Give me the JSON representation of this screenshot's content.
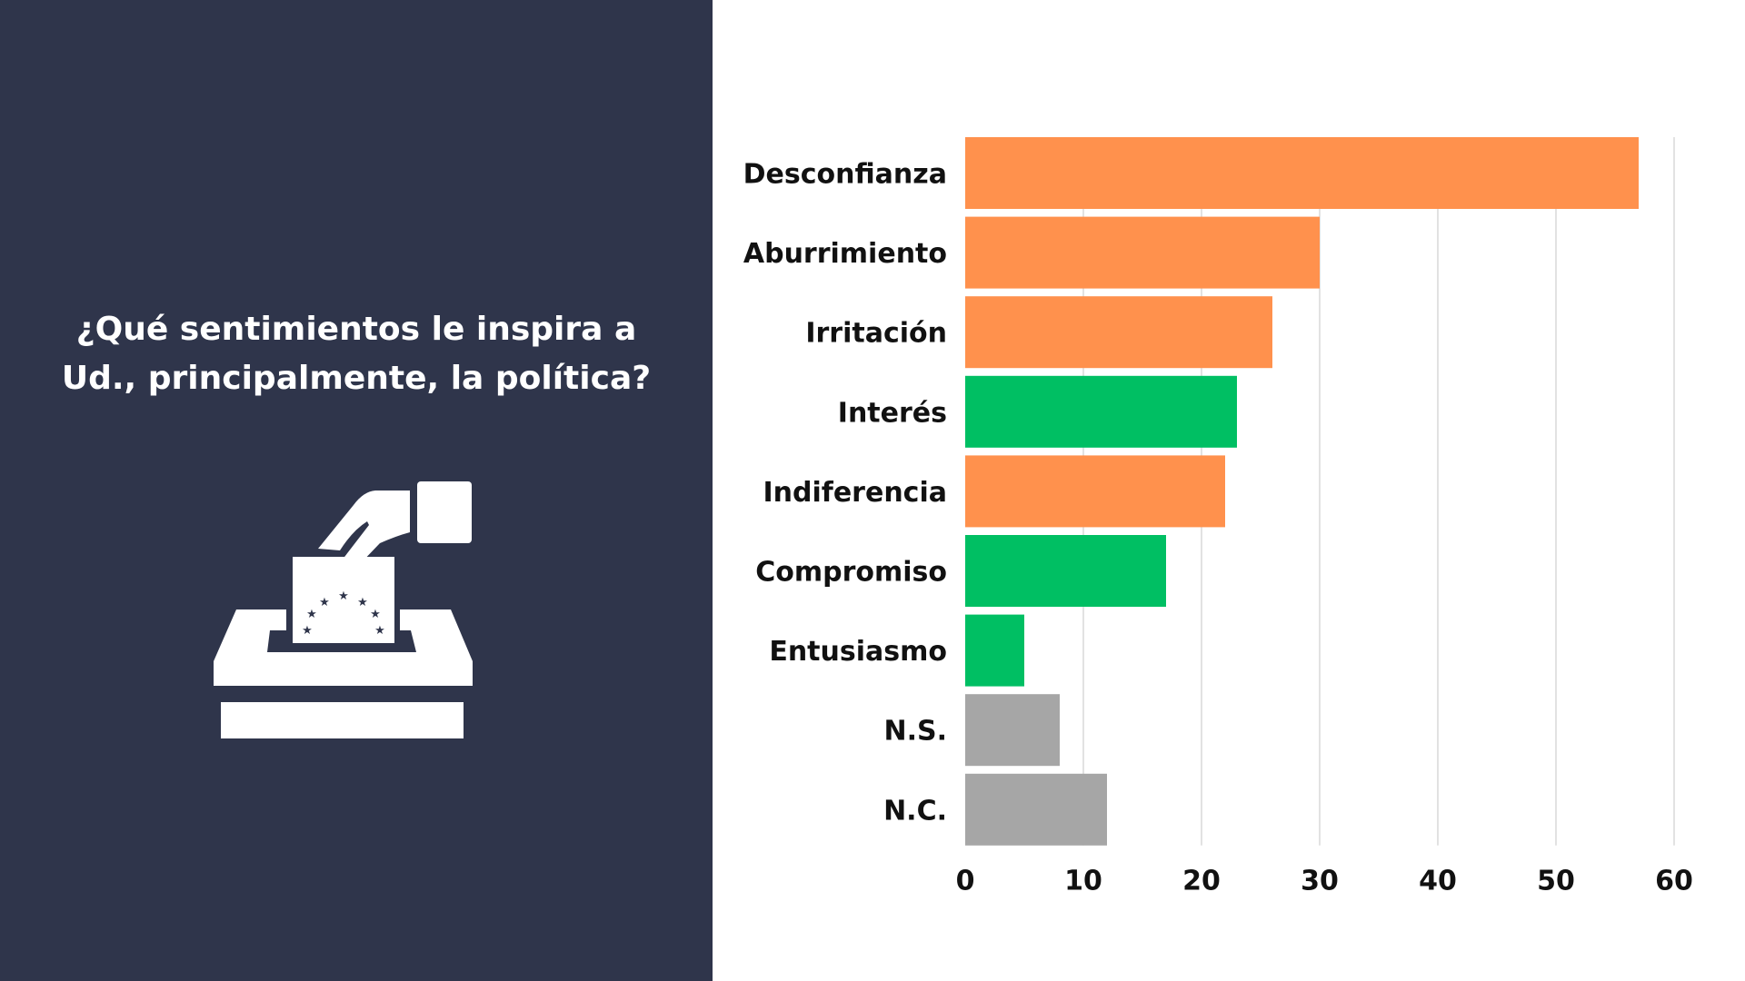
{
  "question": "¿Qué sentimientos le inspira a Ud., principalmente, la política?",
  "icon": "ballot-box-icon",
  "colors": {
    "background_left": "#2f354b",
    "negative": "#ff914d",
    "positive": "#00bf63",
    "neutral": "#a6a6a6",
    "grid": "#d9d9d9"
  },
  "chart_data": {
    "type": "bar",
    "orientation": "horizontal",
    "title": "",
    "xlabel": "",
    "ylabel": "",
    "xlim": [
      0,
      60
    ],
    "x_ticks": [
      0,
      10,
      20,
      30,
      40,
      50,
      60
    ],
    "grid": "vertical",
    "categories": [
      "Desconfianza",
      "Aburrimiento",
      "Irritación",
      "Interés",
      "Indiferencia",
      "Compromiso",
      "Entusiasmo",
      "N.S.",
      "N.C."
    ],
    "values": [
      57,
      30,
      26,
      23,
      22,
      17,
      5,
      8,
      12
    ],
    "bar_colors": [
      "#ff914d",
      "#ff914d",
      "#ff914d",
      "#00bf63",
      "#ff914d",
      "#00bf63",
      "#00bf63",
      "#a6a6a6",
      "#a6a6a6"
    ]
  }
}
